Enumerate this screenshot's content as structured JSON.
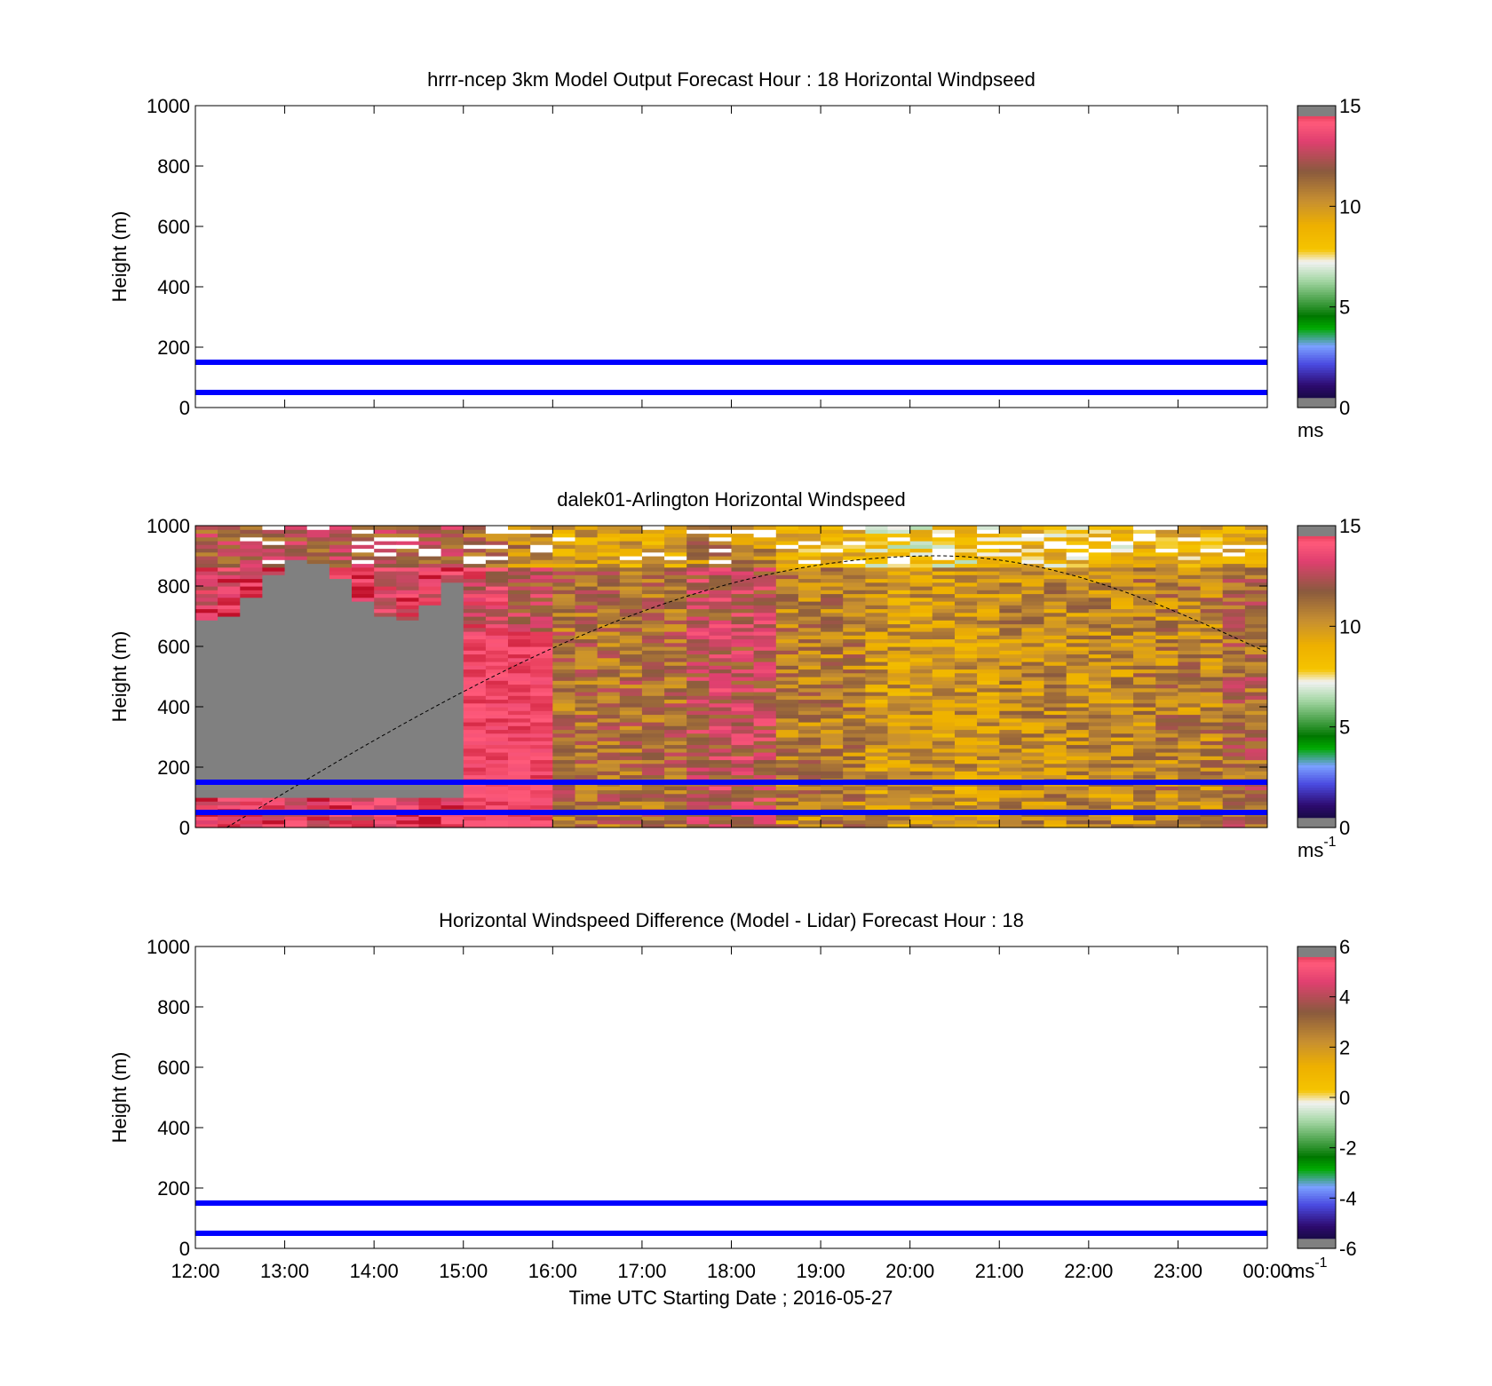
{
  "colors": {
    "line": "#0000ff",
    "sunline": "#000000",
    "missing": "#808080",
    "no_data": "#ffffff",
    "frame": "#000000"
  },
  "chart_data": [
    {
      "type": "heatmap",
      "title": "hrrr-ncep 3km Model Output   Forecast Hour : 18 Horizontal Windpseed",
      "ylabel": "Height (m)",
      "xlabel": "",
      "xlim": [
        12,
        24
      ],
      "ylim": [
        0,
        1000
      ],
      "yticks": [
        "0",
        "200",
        "400",
        "600",
        "800",
        "1000"
      ],
      "xtick_labels": [],
      "grid": false,
      "hlines": [
        150,
        50
      ],
      "field": "empty",
      "colorbar": {
        "ticks": [
          "0",
          "5",
          "10",
          "15"
        ],
        "tick_values": [
          0,
          5,
          10,
          15
        ],
        "range": [
          0,
          15
        ],
        "unit": "ms",
        "unit_exp": ""
      }
    },
    {
      "type": "heatmap",
      "title": "dalek01-Arlington  Horizontal Windspeed",
      "ylabel": "Height (m)",
      "xlabel": "",
      "xlim": [
        12,
        24
      ],
      "ylim": [
        0,
        1000
      ],
      "yticks": [
        "0",
        "200",
        "400",
        "600",
        "800",
        "1000"
      ],
      "xtick_labels": [],
      "grid": false,
      "hlines": [
        150,
        50
      ],
      "field": "lidar-windspeed",
      "time_bin_hours": 0.25,
      "missing_below_hour": 15,
      "missing_cap_m": 780,
      "sun_curve": {
        "start_hour": 12.35,
        "start_height": 0,
        "peak_hour": 20.3,
        "peak_height": 900,
        "end_hour": 24,
        "end_height": 580
      },
      "colorbar": {
        "ticks": [
          "0",
          "5",
          "10",
          "15"
        ],
        "tick_values": [
          0,
          5,
          10,
          15
        ],
        "range": [
          0,
          15
        ],
        "unit": "ms",
        "unit_exp": "-1"
      }
    },
    {
      "type": "heatmap",
      "title": "Horizontal Windspeed Difference (Model - Lidar) Forecast Hour : 18",
      "ylabel": "Height (m)",
      "xlabel": "Time UTC  Starting Date ; 2016-05-27",
      "xlim": [
        12,
        24
      ],
      "ylim": [
        0,
        1000
      ],
      "yticks": [
        "0",
        "200",
        "400",
        "600",
        "800",
        "1000"
      ],
      "xtick_labels": [
        "12:00",
        "13:00",
        "14:00",
        "15:00",
        "16:00",
        "17:00",
        "18:00",
        "19:00",
        "20:00",
        "21:00",
        "22:00",
        "23:00",
        "00:00"
      ],
      "grid": false,
      "hlines": [
        150,
        50
      ],
      "field": "empty",
      "colorbar": {
        "ticks": [
          "-6",
          "-4",
          "-2",
          "0",
          "2",
          "4",
          "6"
        ],
        "tick_values": [
          -6,
          -4,
          -2,
          0,
          2,
          4,
          6
        ],
        "range": [
          -6,
          6
        ],
        "unit": "ms",
        "unit_exp": "-1"
      }
    }
  ]
}
